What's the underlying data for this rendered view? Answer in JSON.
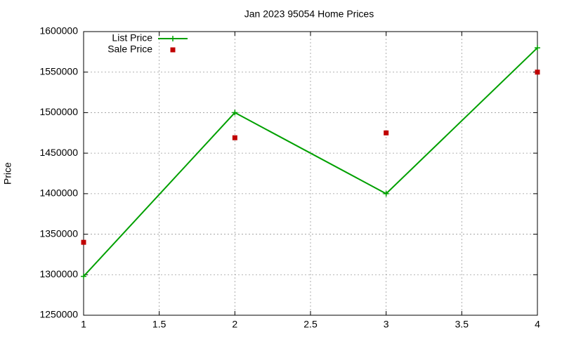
{
  "chart_data": {
    "type": "line",
    "title": "Jan 2023 95054 Home Prices",
    "y_label": "Price",
    "x": [
      1,
      2,
      3,
      4
    ],
    "series": [
      {
        "name": "List Price",
        "color": "#00a000",
        "style": "linespoints",
        "marker": "plus",
        "values": [
          1298000,
          1500000,
          1400000,
          1580000
        ]
      },
      {
        "name": "Sale Price",
        "color": "#c00000",
        "style": "points",
        "marker": "square",
        "values": [
          1340000,
          1469000,
          1475000,
          1550000
        ]
      }
    ],
    "xlim": [
      1,
      4
    ],
    "xticks": [
      1,
      1.5,
      2,
      2.5,
      3,
      3.5,
      4
    ],
    "ylim": [
      1250000,
      1600000
    ],
    "yticks": [
      1250000,
      1300000,
      1350000,
      1400000,
      1450000,
      1500000,
      1550000,
      1600000
    ],
    "grid": true,
    "legend": "top-left"
  }
}
